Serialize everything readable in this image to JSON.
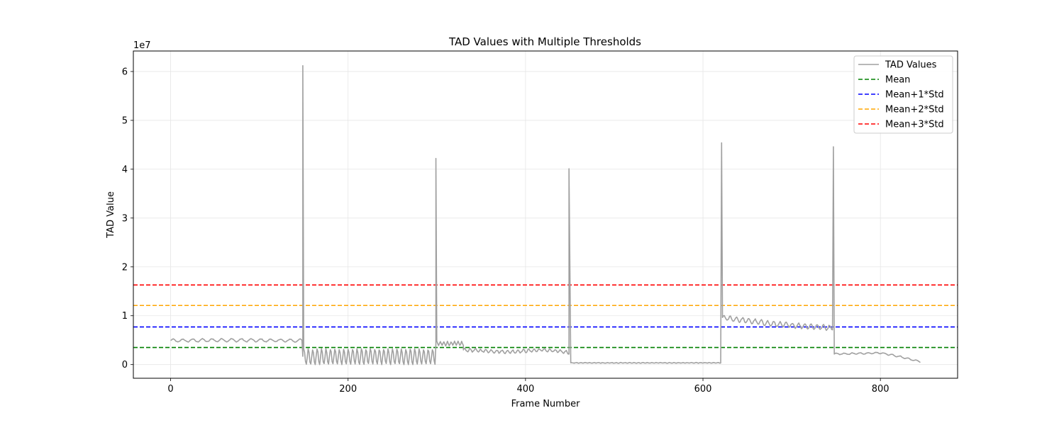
{
  "chart_data": {
    "type": "line",
    "title": "TAD Values with Multiple Thresholds",
    "xlabel": "Frame Number",
    "ylabel": "TAD Value",
    "offset_text": "1e7",
    "y_scale_multiplier": 10000000,
    "xlim": [
      -42,
      887
    ],
    "ylim": [
      -2800000,
      64200000
    ],
    "xticks": [
      0,
      200,
      400,
      600,
      800
    ],
    "xtick_labels": [
      "0",
      "200",
      "400",
      "600",
      "800"
    ],
    "yticks": [
      0,
      10000000,
      20000000,
      30000000,
      40000000,
      50000000,
      60000000
    ],
    "ytick_labels": [
      "0",
      "1",
      "2",
      "3",
      "4",
      "5",
      "6"
    ],
    "grid": true,
    "legend_position": "top-right",
    "series": [
      {
        "name": "TAD Values",
        "color": "#a0a0a0",
        "style": "solid",
        "segments": [
          {
            "from": 0,
            "to": 148,
            "base": 5000000,
            "osc_amp": 300000,
            "osc_period": 11,
            "noise": 150000
          },
          {
            "from": 149,
            "to": 298,
            "base": 1600000,
            "osc_amp": 1600000,
            "osc_period": 5,
            "noise": 300000
          },
          {
            "from": 299,
            "to": 330,
            "base": 4300000,
            "osc_amp": 400000,
            "osc_period": 4,
            "noise": 200000
          },
          {
            "from": 330,
            "to": 449,
            "base": 2800000,
            "osc_amp": 300000,
            "osc_period": 6,
            "noise": 250000
          },
          {
            "from": 451,
            "to": 620,
            "base": 350000,
            "osc_amp": 60000,
            "osc_period": 5,
            "noise": 60000
          },
          {
            "from": 622,
            "to": 746,
            "base": 8500000,
            "osc_amp": 500000,
            "osc_period": 7,
            "noise": 250000
          },
          {
            "from": 748,
            "to": 845,
            "base": 2100000,
            "osc_amp": 150000,
            "osc_period": 9,
            "noise": 100000
          }
        ],
        "anchors": [
          [
            0,
            4900000
          ],
          [
            60,
            5000000
          ],
          [
            148,
            4900000
          ],
          [
            330,
            3000000
          ],
          [
            380,
            2600000
          ],
          [
            420,
            3000000
          ],
          [
            449,
            2500000
          ],
          [
            622,
            9600000
          ],
          [
            680,
            8300000
          ],
          [
            746,
            7500000
          ],
          [
            760,
            2200000
          ],
          [
            800,
            2400000
          ],
          [
            820,
            1700000
          ],
          [
            845,
            600000
          ]
        ],
        "spikes": [
          {
            "x": 149,
            "y": 61200000
          },
          {
            "x": 299,
            "y": 42200000
          },
          {
            "x": 449,
            "y": 40100000
          },
          {
            "x": 621,
            "y": 45400000
          },
          {
            "x": 747,
            "y": 44600000
          }
        ]
      },
      {
        "name": "Mean",
        "color": "#008000",
        "style": "dashed",
        "value": 3500000
      },
      {
        "name": "Mean+1*Std",
        "color": "#0000ff",
        "style": "dashed",
        "value": 7700000
      },
      {
        "name": "Mean+2*Std",
        "color": "#ffa500",
        "style": "dashed",
        "value": 12100000
      },
      {
        "name": "Mean+3*Std",
        "color": "#ff0000",
        "style": "dashed",
        "value": 16300000
      }
    ]
  }
}
